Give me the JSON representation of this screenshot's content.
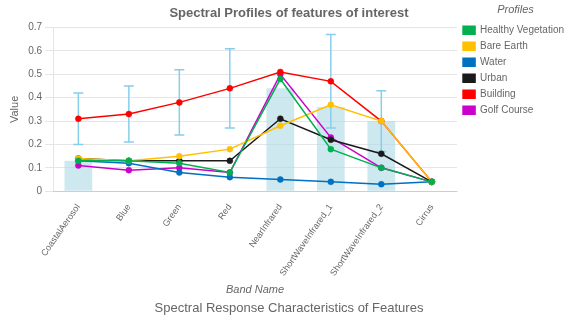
{
  "chart_data": {
    "type": "line",
    "title": "Spectral Profiles of features of interest",
    "subtitle": "Spectral Response Characteristics of Features",
    "xlabel": "Band Name",
    "ylabel": "Value",
    "categories": [
      "CoastalAerosol",
      "Blue",
      "Green",
      "Red",
      "NearInfrared",
      "ShortWaveInfrared_1",
      "ShortWaveInfrared_2",
      "Cirrus"
    ],
    "series": [
      {
        "type": "bar",
        "color": "#add8e6",
        "values": [
          0.13,
          0.0,
          0.0,
          0.0,
          0.44,
          0.36,
          0.3,
          0.0
        ]
      },
      {
        "name": "Healthy Vegetation",
        "color": "#00b050",
        "marker": "circle",
        "values": [
          0.13,
          0.13,
          0.12,
          0.08,
          0.48,
          0.18,
          0.1,
          0.04
        ]
      },
      {
        "name": "Bare Earth",
        "color": "#ffc000",
        "marker": "circle",
        "values": [
          0.14,
          0.13,
          0.15,
          0.18,
          0.28,
          0.37,
          0.3,
          0.04
        ]
      },
      {
        "name": "Water",
        "color": "#0070c0",
        "marker": "circle",
        "values": [
          0.13,
          0.12,
          0.08,
          0.06,
          0.05,
          0.04,
          0.03,
          0.04
        ]
      },
      {
        "name": "Urban",
        "color": "#1a1a1a",
        "marker": "circle",
        "values": [
          0.14,
          0.13,
          0.13,
          0.13,
          0.31,
          0.22,
          0.16,
          0.04
        ]
      },
      {
        "name": "Building",
        "color": "#ff0000",
        "marker": "circle",
        "values": [
          0.31,
          0.33,
          0.38,
          0.44,
          0.51,
          0.47,
          0.3,
          0.04
        ]
      },
      {
        "name": "Golf Course",
        "color": "#cc00cc",
        "marker": "circle",
        "values": [
          0.11,
          0.09,
          0.1,
          0.08,
          0.5,
          0.23,
          0.1,
          0.04
        ]
      }
    ],
    "error_bars": {
      "color": "#87ceeb",
      "centers": [
        0.31,
        0.33,
        0.38,
        0.44,
        0.0,
        0.47,
        0.3,
        0.0
      ],
      "errors": [
        0.11,
        0.12,
        0.14,
        0.17,
        0.0,
        0.2,
        0.13,
        0.0
      ]
    },
    "ylim": [
      0,
      0.7
    ],
    "yticks": [
      0,
      0.1,
      0.2,
      0.3,
      0.4,
      0.5,
      0.6,
      0.7
    ],
    "grid": true,
    "legend": "right",
    "legend_title": "Profiles"
  }
}
